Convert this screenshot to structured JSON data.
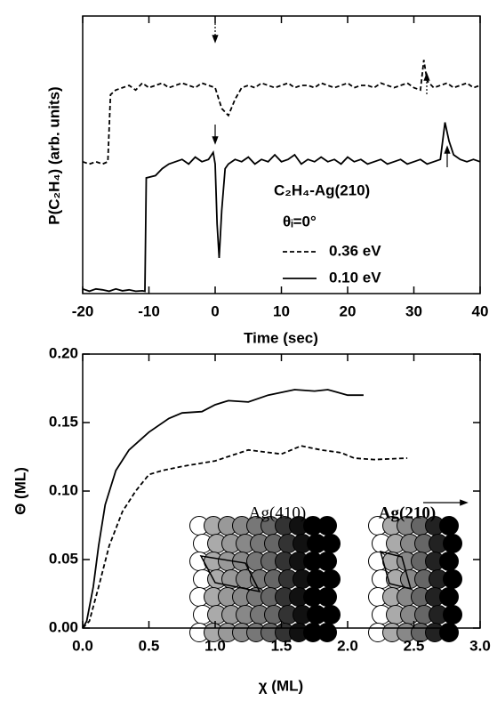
{
  "chart_data": [
    {
      "type": "line",
      "xlabel": "Time (sec)",
      "ylabel": "P(C₂H₄) (arb. units)",
      "annotations": [
        "C₂H₄-Ag(210)",
        "θᵢ=0°"
      ],
      "xlim": [
        -20,
        40
      ],
      "xticks": [
        -20,
        -10,
        0,
        10,
        20,
        30,
        40
      ],
      "ylim": [
        0,
        6
      ],
      "series": [
        {
          "name": "0.36 eV",
          "color": "#000000",
          "linestyle": "dashed",
          "x": [
            -20,
            -19,
            -18,
            -17,
            -16.2,
            -15.8,
            -15,
            -14,
            -13,
            -12,
            -11,
            -10,
            -9,
            -8,
            -7,
            -6,
            -5,
            -4,
            -3,
            -2,
            -1,
            0,
            1,
            2,
            3,
            4,
            5,
            6,
            7,
            8,
            9,
            10,
            11,
            12,
            13,
            14,
            15,
            16,
            17,
            18,
            19,
            20,
            21,
            22,
            23,
            24,
            25,
            26,
            27,
            28,
            29,
            30,
            31,
            31.5,
            32,
            33,
            34,
            35,
            36,
            37,
            38,
            39,
            40
          ],
          "values": [
            2.85,
            2.8,
            2.85,
            2.8,
            2.85,
            4.3,
            4.4,
            4.45,
            4.5,
            4.4,
            4.55,
            4.45,
            4.5,
            4.55,
            4.45,
            4.5,
            4.55,
            4.5,
            4.45,
            4.55,
            4.5,
            4.45,
            4.0,
            3.85,
            4.2,
            4.45,
            4.5,
            4.45,
            4.55,
            4.5,
            4.45,
            4.5,
            4.55,
            4.45,
            4.5,
            4.5,
            4.45,
            4.55,
            4.5,
            4.45,
            4.5,
            4.55,
            4.45,
            4.5,
            4.5,
            4.45,
            4.55,
            4.5,
            4.45,
            4.5,
            4.55,
            4.45,
            4.4,
            5.05,
            4.6,
            4.45,
            4.5,
            4.55,
            4.45,
            4.5,
            4.55,
            4.45,
            4.5
          ]
        },
        {
          "name": "0.10 eV",
          "color": "#000000",
          "linestyle": "solid",
          "x": [
            -20,
            -19,
            -18,
            -17,
            -16,
            -15,
            -14,
            -13,
            -12,
            -11,
            -10.6,
            -10.4,
            -9,
            -8,
            -7,
            -6,
            -5,
            -4,
            -3,
            -2,
            -1,
            -0.3,
            0,
            0.3,
            0.6,
            1,
            1.5,
            2,
            3,
            4,
            5,
            6,
            7,
            8,
            9,
            10,
            11,
            12,
            13,
            14,
            15,
            16,
            17,
            18,
            19,
            20,
            21,
            22,
            23,
            24,
            25,
            26,
            27,
            28,
            29,
            30,
            31,
            32,
            33,
            34,
            34.7,
            35.3,
            36,
            37,
            38,
            39,
            40
          ],
          "values": [
            0.1,
            0.05,
            0.1,
            0.08,
            0.05,
            0.1,
            0.06,
            0.08,
            0.05,
            0.06,
            0.05,
            2.5,
            2.55,
            2.7,
            2.8,
            2.85,
            2.9,
            2.8,
            2.95,
            2.85,
            2.9,
            3.05,
            2.8,
            1.5,
            0.77,
            1.8,
            2.7,
            2.8,
            2.9,
            2.85,
            2.95,
            2.8,
            2.9,
            2.85,
            3.0,
            2.85,
            2.9,
            3.0,
            2.8,
            2.9,
            2.85,
            2.95,
            2.85,
            2.9,
            2.8,
            2.95,
            2.85,
            2.9,
            2.8,
            2.85,
            2.9,
            2.8,
            2.85,
            2.9,
            2.8,
            2.85,
            2.9,
            2.8,
            2.85,
            2.9,
            3.7,
            3.3,
            3.0,
            2.9,
            2.85,
            2.9,
            2.85
          ]
        }
      ]
    },
    {
      "type": "line",
      "xlabel": "χ (ML)",
      "ylabel": "Θ (ML)",
      "annotations": [
        "Ag(410)",
        "Ag(210)"
      ],
      "xlim": [
        0,
        3
      ],
      "xticks": [
        {
          "value": 0,
          "label": "0.0"
        },
        0.5,
        {
          "value": 1,
          "label": "1.0"
        },
        1.5,
        {
          "value": 2,
          "label": "2.0"
        },
        2.5,
        {
          "value": 3,
          "label": "3.0"
        }
      ],
      "ylim": [
        0,
        0.2
      ],
      "yticks": [
        {
          "value": 0,
          "label": "0.00"
        },
        0.05,
        {
          "value": 0.1,
          "label": "0.10"
        },
        0.15,
        {
          "value": 0.2,
          "label": "0.20"
        }
      ],
      "series": [
        {
          "color": "#000000",
          "linestyle": "solid",
          "x": [
            0,
            0.03,
            0.08,
            0.12,
            0.17,
            0.25,
            0.35,
            0.5,
            0.65,
            0.75,
            0.9,
            1.0,
            1.1,
            1.25,
            1.4,
            1.6,
            1.75,
            1.85,
            2.0,
            2.12
          ],
          "values": [
            0,
            0.005,
            0.03,
            0.06,
            0.09,
            0.115,
            0.13,
            0.143,
            0.153,
            0.157,
            0.158,
            0.163,
            0.166,
            0.165,
            0.17,
            0.174,
            0.173,
            0.174,
            0.17,
            0.17
          ]
        },
        {
          "color": "#000000",
          "linestyle": "dashed",
          "x": [
            0,
            0.05,
            0.12,
            0.2,
            0.3,
            0.4,
            0.5,
            0.6,
            0.75,
            1.0,
            1.25,
            1.5,
            1.65,
            1.8,
            1.95,
            2.05,
            2.2,
            2.45
          ],
          "values": [
            0,
            0.005,
            0.03,
            0.06,
            0.085,
            0.1,
            0.112,
            0.115,
            0.118,
            0.122,
            0.13,
            0.127,
            0.133,
            0.13,
            0.128,
            0.124,
            0.123,
            0.124
          ]
        }
      ]
    }
  ]
}
